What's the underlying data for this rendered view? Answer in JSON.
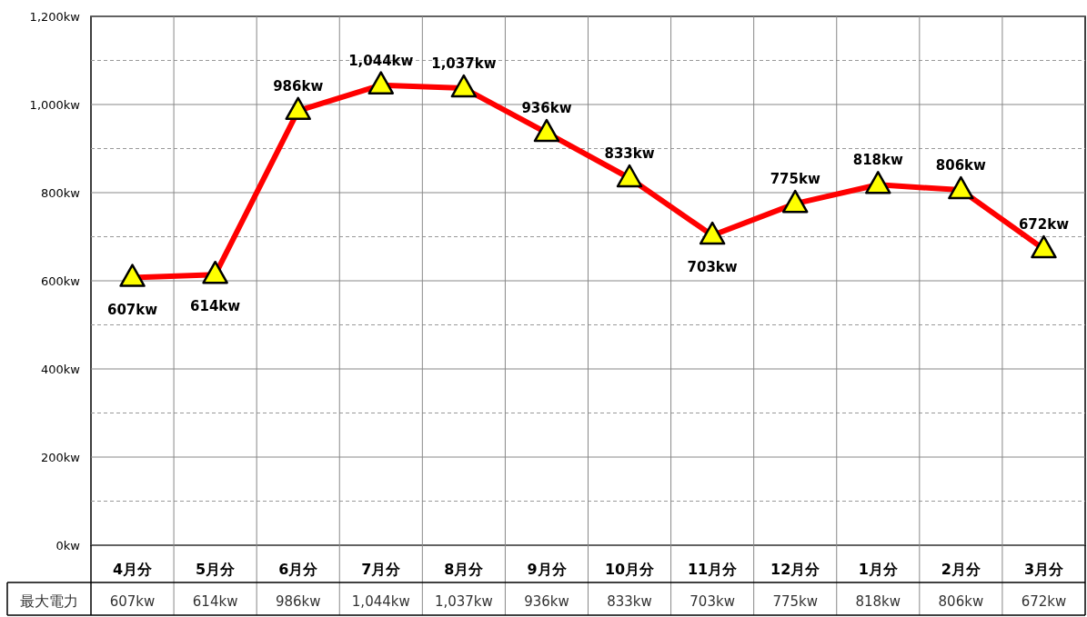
{
  "chart_data": {
    "type": "line",
    "categories": [
      "4月分",
      "5月分",
      "6月分",
      "7月分",
      "8月分",
      "9月分",
      "10月分",
      "11月分",
      "12月分",
      "1月分",
      "2月分",
      "3月分"
    ],
    "series": [
      {
        "name": "最大電力",
        "color": "#ff0000",
        "values": [
          607,
          614,
          986,
          1044,
          1037,
          936,
          833,
          703,
          775,
          818,
          806,
          672
        ],
        "value_labels": [
          "607kw",
          "614kw",
          "986kw",
          "1,044kw",
          "1,037kw",
          "936kw",
          "833kw",
          "703kw",
          "775kw",
          "818kw",
          "806kw",
          "672kw"
        ]
      }
    ],
    "ylim": [
      0,
      1200
    ],
    "yticks": [
      {
        "value": 0,
        "label": "0kw"
      },
      {
        "value": 100,
        "label": null
      },
      {
        "value": 200,
        "label": "200kw"
      },
      {
        "value": 300,
        "label": null
      },
      {
        "value": 400,
        "label": "400kw"
      },
      {
        "value": 500,
        "label": null
      },
      {
        "value": 600,
        "label": "600kw"
      },
      {
        "value": 700,
        "label": null
      },
      {
        "value": 800,
        "label": "800kw"
      },
      {
        "value": 900,
        "label": null
      },
      {
        "value": 1000,
        "label": "1,000kw"
      },
      {
        "value": 1100,
        "label": null
      },
      {
        "value": 1200,
        "label": "1,200kw"
      }
    ],
    "grid": true,
    "legend": "bottom left",
    "marker": "triangle",
    "line_style": "solid"
  }
}
